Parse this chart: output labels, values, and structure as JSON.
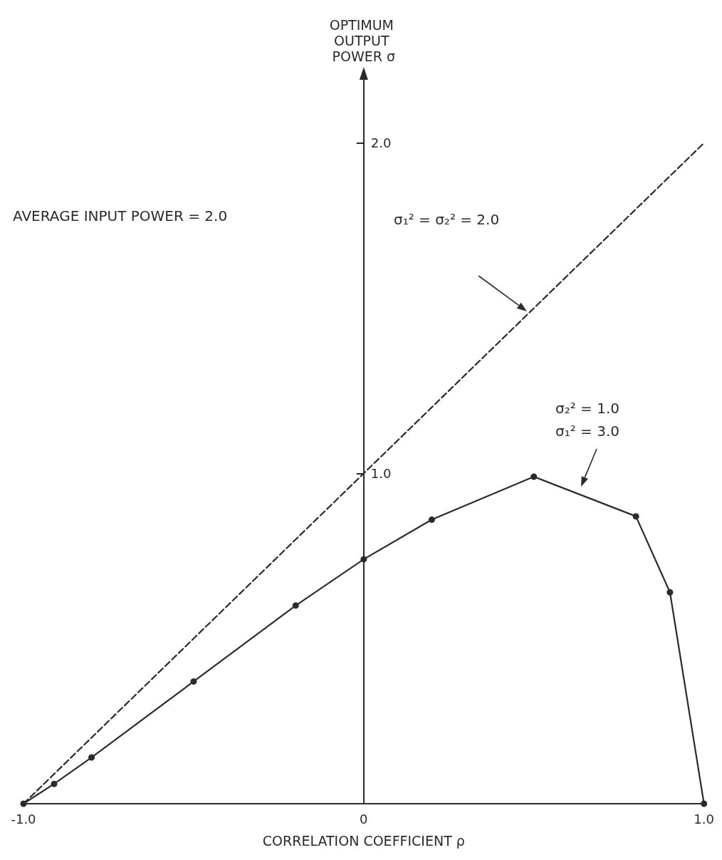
{
  "chart_data": {
    "type": "line",
    "xlabel": "CORRELATION COEFFICIENT ρ",
    "ylabel": "OPTIMUM OUTPUT POWER σ",
    "xlim": [
      -1,
      1
    ],
    "ylim": [
      0,
      2.2
    ],
    "xticks": [
      {
        "value": -1,
        "label": "-1.0"
      },
      0,
      {
        "value": 1,
        "label": "1.0"
      }
    ],
    "yticks": [
      {
        "value": 1,
        "label": "1.0"
      },
      {
        "value": 2,
        "label": "2.0"
      }
    ],
    "series": [
      {
        "x": [
          -1,
          -0.91,
          -0.8,
          -0.5,
          -0.2,
          0,
          0.2,
          0.5,
          0.8,
          0.9,
          1
        ],
        "values": [
          0,
          0.06,
          0.14,
          0.37,
          0.6,
          0.74,
          0.86,
          0.99,
          0.87,
          0.64,
          0
        ],
        "color": "#2b2b2b",
        "marker": "circle",
        "line_style": "solid"
      },
      {
        "x": [
          -1,
          1
        ],
        "values": [
          0,
          2
        ],
        "color": "#2b2b2b",
        "marker": "none",
        "line_style": "dashed"
      }
    ],
    "annotations": [
      "AVERAGE INPUT POWER = 2.0",
      "σ₁² = σ₂² = 2.0",
      "σ₂² = 1.0",
      "σ₁² = 3.0"
    ]
  }
}
